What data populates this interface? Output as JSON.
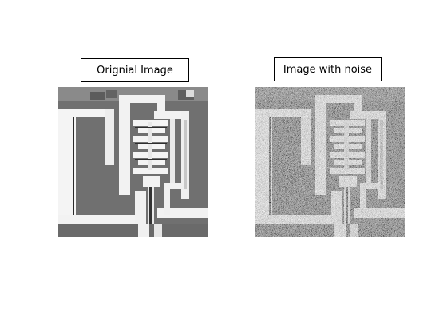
{
  "figure": {
    "left": {
      "title": "Orignial Image",
      "image_desc": "grayscale-micrograph-clean"
    },
    "right": {
      "title": "Image with noise",
      "image_desc": "grayscale-micrograph-salt-pepper-noise"
    }
  },
  "colors": {
    "background_gray": "#6e6e6e",
    "structure_white": "#f2f2f2",
    "dark_gap": "#2e2e2e",
    "noisy_background_gray": "#5a5a5a"
  }
}
